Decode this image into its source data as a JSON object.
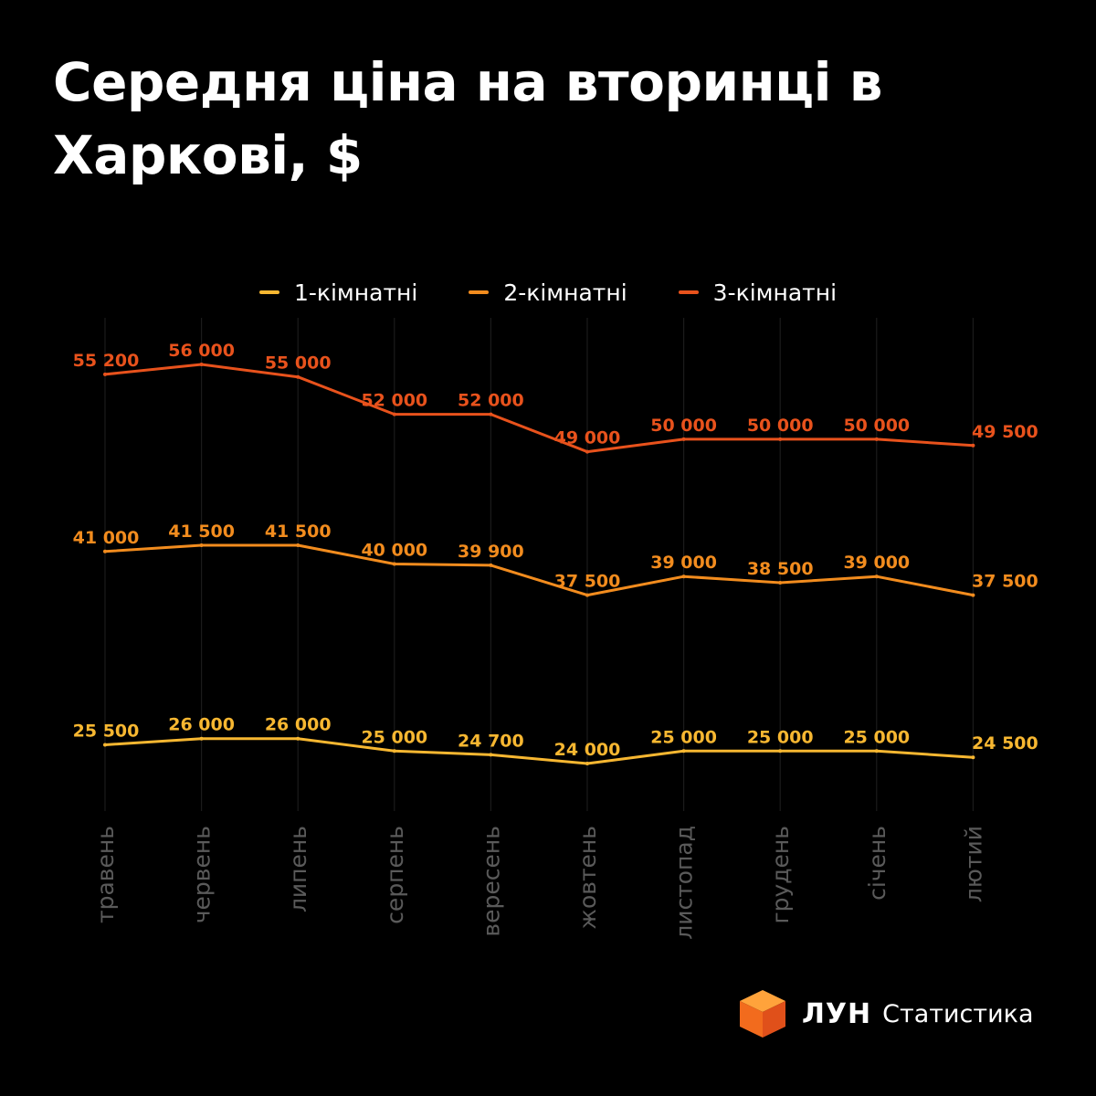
{
  "title": "Середня ціна на вторинці в Харкові, $",
  "brand": {
    "name": "ЛУН",
    "subtitle": "Статистика"
  },
  "chart_data": {
    "type": "line",
    "title": "Середня ціна на вторинці в Харкові, $",
    "categories": [
      "травень",
      "червень",
      "липень",
      "серпень",
      "вересень",
      "жовтень",
      "листопад",
      "грудень",
      "січень",
      "лютий"
    ],
    "series": [
      {
        "name": "1-кімнатні",
        "color": "#F7B731",
        "values": [
          25500,
          26000,
          26000,
          25000,
          24700,
          24000,
          25000,
          25000,
          25000,
          24500
        ],
        "labels": [
          "25 500",
          "26 000",
          "26 000",
          "25 000",
          "24 700",
          "24 000",
          "25 000",
          "25 000",
          "25 000",
          "24 500"
        ]
      },
      {
        "name": "2-кімнатні",
        "color": "#F28C1E",
        "values": [
          41000,
          41500,
          41500,
          40000,
          39900,
          37500,
          39000,
          38500,
          39000,
          37500
        ],
        "labels": [
          "41 000",
          "41 500",
          "41 500",
          "40 000",
          "39 900",
          "37 500",
          "39 000",
          "38 500",
          "39 000",
          "37 500"
        ]
      },
      {
        "name": "3-кімнатні",
        "color": "#E8521C",
        "values": [
          55200,
          56000,
          55000,
          52000,
          52000,
          49000,
          50000,
          50000,
          50000,
          49500
        ],
        "labels": [
          "55 200",
          "56 000",
          "55 000",
          "52 000",
          "52 000",
          "49 000",
          "50 000",
          "50 000",
          "50 000",
          "49 500"
        ]
      }
    ],
    "grid": true,
    "legend": "top-center"
  }
}
